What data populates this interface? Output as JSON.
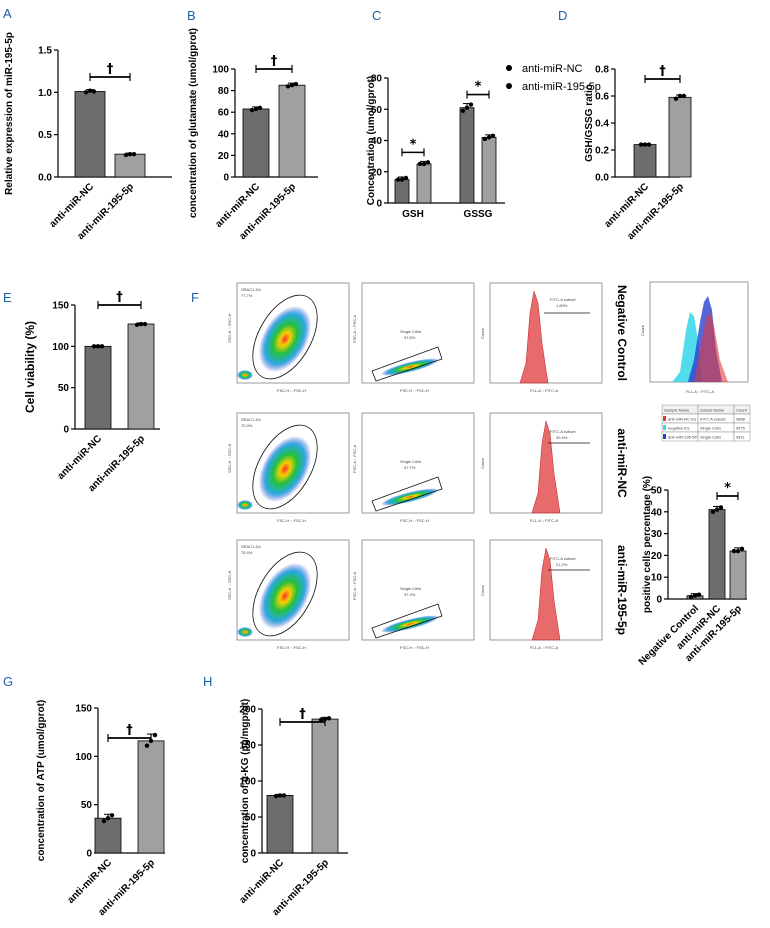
{
  "panel_labels": [
    "A",
    "B",
    "C",
    "D",
    "E",
    "F",
    "G",
    "H"
  ],
  "chart_data": [
    {
      "id": "A",
      "type": "bar",
      "ylabel": "Relative expression of miR-195-5p",
      "categories": [
        "anti-miR-NC",
        "anti-miR-195-5p"
      ],
      "values": [
        1.01,
        0.27
      ],
      "ylim": [
        0,
        1.5
      ],
      "yticks": [
        0,
        0.5,
        1.0,
        1.5
      ],
      "significance": "†",
      "points": [
        [
          1.0,
          1.02,
          1.01
        ],
        [
          0.26,
          0.27,
          0.27
        ]
      ]
    },
    {
      "id": "B",
      "type": "bar",
      "ylabel": "concentration of glutamate (umol/gprot)",
      "categories": [
        "anti-miR-NC",
        "anti-miR-195-5p"
      ],
      "values": [
        63,
        85
      ],
      "ylim": [
        0,
        100
      ],
      "yticks": [
        0,
        20,
        40,
        60,
        80,
        100
      ],
      "significance": "†",
      "points": [
        [
          62,
          63,
          64
        ],
        [
          84,
          85,
          86
        ]
      ]
    },
    {
      "id": "C",
      "type": "bar",
      "ylabel": "Concentration (umol/gprot)",
      "categories": [
        "GSH",
        "GSSG"
      ],
      "series": [
        {
          "name": "anti-miR-NC",
          "values": [
            15,
            61
          ]
        },
        {
          "name": "anti-miR-195-5p",
          "values": [
            25,
            42
          ]
        }
      ],
      "ylim": [
        0,
        80
      ],
      "yticks": [
        0,
        20,
        40,
        60,
        80
      ],
      "significance": [
        "*",
        "*"
      ],
      "points": [
        [
          [
            15,
            15,
            16
          ],
          [
            25,
            25,
            26
          ]
        ],
        [
          [
            59,
            61,
            63
          ],
          [
            41,
            42,
            43
          ]
        ]
      ]
    },
    {
      "id": "D",
      "type": "bar",
      "ylabel": "GSH/GSSG ratio",
      "categories": [
        "anti-miR-NC",
        "anti-miR-195-5p"
      ],
      "values": [
        0.24,
        0.59
      ],
      "ylim": [
        0,
        0.8
      ],
      "yticks": [
        0.0,
        0.2,
        0.4,
        0.6,
        0.8
      ],
      "significance": "†",
      "points": [
        [
          0.24,
          0.24,
          0.24
        ],
        [
          0.58,
          0.6,
          0.6
        ]
      ]
    },
    {
      "id": "E",
      "type": "bar",
      "ylabel": "Cell viability (%)",
      "categories": [
        "anti-miR-NC",
        "anti-miR-195-5p"
      ],
      "values": [
        100,
        127
      ],
      "ylim": [
        0,
        150
      ],
      "yticks": [
        0,
        50,
        100,
        150
      ],
      "significance": "†",
      "points": [
        [
          100,
          100,
          100
        ],
        [
          126,
          127,
          127
        ]
      ]
    },
    {
      "id": "F2",
      "type": "bar",
      "ylabel": "positive cells percentage (%)",
      "categories": [
        "Negative Control",
        "anti-miR-NC",
        "anti-miR-195-5p"
      ],
      "values": [
        1.5,
        41,
        22
      ],
      "ylim": [
        0,
        50
      ],
      "yticks": [
        0,
        10,
        20,
        30,
        40,
        50
      ],
      "significance": "*",
      "points": [
        [
          1,
          1.5,
          2
        ],
        [
          40,
          41,
          42
        ],
        [
          22,
          22,
          23
        ]
      ]
    },
    {
      "id": "G",
      "type": "bar",
      "ylabel": "concentration of ATP (umol/gprot)",
      "categories": [
        "anti-miR-NC",
        "anti-miR-195-5p"
      ],
      "values": [
        36,
        116
      ],
      "ylim": [
        0,
        150
      ],
      "yticks": [
        0,
        50,
        100,
        150
      ],
      "significance": "†",
      "points": [
        [
          33,
          36,
          39
        ],
        [
          111,
          116,
          122
        ]
      ]
    },
    {
      "id": "H",
      "type": "bar",
      "ylabel": "concentration of α-KG (pg/mgprot)",
      "categories": [
        "anti-miR-NC",
        "anti-miR-195-5p"
      ],
      "values": [
        80,
        186
      ],
      "ylim": [
        0,
        200
      ],
      "yticks": [
        0,
        50,
        100,
        150,
        200
      ],
      "significance": "†",
      "points": [
        [
          79,
          80,
          80
        ],
        [
          185,
          186,
          187
        ]
      ]
    }
  ],
  "flow": {
    "row_labels": [
      "Negative Control",
      "anti-miR-NC",
      "anti-miR-195-5p"
    ],
    "gate_names": [
      "SRAC1-D4",
      "SRAC1-D4",
      "SRAC1-D4"
    ],
    "gate_pcts": [
      "77.7%",
      "72.0%",
      "75.4%"
    ],
    "single_labels": [
      "Single Cells",
      "Single Cells",
      "Single Cells"
    ],
    "single_pcts": [
      "97.6%",
      "97.7%",
      "97.4%"
    ],
    "fitc_labels": [
      "FITC-A subset",
      "FITC-A subset",
      "FITC-A subset"
    ],
    "fitc_pcts": [
      "1.60%",
      "39.4%",
      "21.2%"
    ],
    "axis_fsc_h": "FSC-H :: FSC-H",
    "axis_ssc_h": "SSC-H :: SSC-H",
    "axis_fsc_a": "FSC-A :: FSC-A",
    "axis_fl1": "FL1-A :: FITC-A",
    "axis_count": "Count",
    "overlay_xlabel": "FL1-A :: FITC-A",
    "overlay_ylabel": "Count",
    "legend_headers": [
      "Sample Name",
      "Subset Name",
      "Count"
    ],
    "legend_rows": [
      [
        "anti-miR-NC.fcs",
        "FITC-A subset",
        "3888"
      ],
      [
        "negative.fcs",
        "Single Cells",
        "9575"
      ],
      [
        "anti-miR-195-5P.fcs",
        "Single Cells",
        "9811"
      ]
    ]
  },
  "colors": {
    "bar_dark": "#6d6d6d",
    "bar_light": "#a0a0a0",
    "panel_label": "#1f5fa8",
    "hist_red": "#e03a3a",
    "hist_cyan": "#33d6e8",
    "hist_blue": "#2b3fd1"
  }
}
